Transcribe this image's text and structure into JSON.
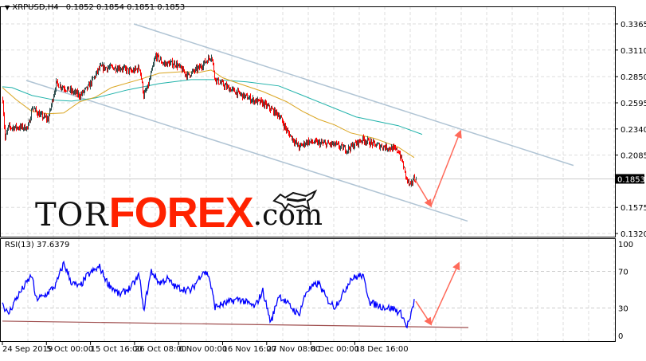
{
  "header": {
    "symbol": "XRPUSD,H4",
    "ohlc": "0.1852 0.1854 0.1851 0.1853"
  },
  "rsi": {
    "label": "RSI(13) 37.6379"
  },
  "logo": {
    "text_tor": "TOR",
    "text_forex": "FOREX",
    "text_com": ".com"
  },
  "colors": {
    "bull": "#2f4f4f",
    "bear": "#ff0000",
    "ma_fast": "#daa520",
    "ma_slow": "#20b2aa",
    "channel": "#b0c4d4",
    "arrow": "#ff6a5a",
    "rsi_line": "#0000ff",
    "rsi_trend": "#a05050",
    "current_price_bg": "#000000"
  },
  "chart_data": [
    {
      "type": "line",
      "title": "XRPUSD,H4",
      "price_axis": {
        "ticks": [
          "0.3365",
          "0.3110",
          "0.2850",
          "0.2595",
          "0.2340",
          "0.2085",
          "0.1575",
          "0.1320"
        ],
        "range": [
          0.132,
          0.3365
        ],
        "current": "0.1853"
      },
      "time_axis": {
        "ticks": [
          "24 Sep 2019",
          "5 Oct 00:00",
          "15 Oct 16:00",
          "26 Oct 08:00",
          "6 Nov 00:00",
          "16 Nov 16:00",
          "27 Nov 08:00",
          "8 Dec 00:00",
          "18 Dec 16:00"
        ]
      },
      "grid": true,
      "price_path": [
        [
          0,
          0.2628
        ],
        [
          3,
          0.224
        ],
        [
          7,
          0.2356
        ],
        [
          17,
          0.2356
        ],
        [
          32,
          0.2356
        ],
        [
          37,
          0.255
        ],
        [
          47,
          0.2473
        ],
        [
          57,
          0.2434
        ],
        [
          67,
          0.2783
        ],
        [
          87,
          0.2705
        ],
        [
          97,
          0.2667
        ],
        [
          107,
          0.2744
        ],
        [
          122,
          0.2938
        ],
        [
          137,
          0.2938
        ],
        [
          147,
          0.2938
        ],
        [
          162,
          0.2899
        ],
        [
          172,
          0.2938
        ],
        [
          177,
          0.2667
        ],
        [
          182,
          0.2744
        ],
        [
          192,
          0.3055
        ],
        [
          202,
          0.2977
        ],
        [
          217,
          0.2977
        ],
        [
          232,
          0.2861
        ],
        [
          247,
          0.2938
        ],
        [
          262,
          0.3055
        ],
        [
          267,
          0.2822
        ],
        [
          282,
          0.2744
        ],
        [
          297,
          0.2682
        ],
        [
          312,
          0.2628
        ],
        [
          327,
          0.2589
        ],
        [
          347,
          0.2473
        ],
        [
          357,
          0.2317
        ],
        [
          372,
          0.2162
        ],
        [
          382,
          0.2217
        ],
        [
          397,
          0.2201
        ],
        [
          417,
          0.2186
        ],
        [
          432,
          0.2139
        ],
        [
          452,
          0.224
        ],
        [
          467,
          0.2186
        ],
        [
          487,
          0.2154
        ],
        [
          497,
          0.2123
        ],
        [
          502,
          0.2007
        ],
        [
          507,
          0.1852
        ],
        [
          512,
          0.1774
        ],
        [
          515,
          0.1852
        ],
        [
          519,
          0.1853
        ]
      ],
      "ma_fast": [
        [
          0,
          0.2744
        ],
        [
          17,
          0.2628
        ],
        [
          37,
          0.2511
        ],
        [
          57,
          0.2488
        ],
        [
          77,
          0.2496
        ],
        [
          97,
          0.2605
        ],
        [
          117,
          0.2651
        ],
        [
          137,
          0.2744
        ],
        [
          172,
          0.2822
        ],
        [
          197,
          0.2884
        ],
        [
          227,
          0.2899
        ],
        [
          247,
          0.2892
        ],
        [
          262,
          0.2915
        ],
        [
          277,
          0.2838
        ],
        [
          297,
          0.2783
        ],
        [
          327,
          0.2705
        ],
        [
          357,
          0.2605
        ],
        [
          377,
          0.2511
        ],
        [
          397,
          0.2434
        ],
        [
          417,
          0.238
        ],
        [
          437,
          0.2302
        ],
        [
          467,
          0.2248
        ],
        [
          497,
          0.2162
        ],
        [
          517,
          0.2061
        ]
      ],
      "ma_slow": [
        [
          0,
          0.2752
        ],
        [
          12,
          0.2744
        ],
        [
          37,
          0.2667
        ],
        [
          67,
          0.262
        ],
        [
          87,
          0.2612
        ],
        [
          117,
          0.2643
        ],
        [
          157,
          0.2721
        ],
        [
          197,
          0.2783
        ],
        [
          237,
          0.2822
        ],
        [
          267,
          0.2822
        ],
        [
          307,
          0.2799
        ],
        [
          347,
          0.276
        ],
        [
          377,
          0.2667
        ],
        [
          444,
          0.2457
        ],
        [
          497,
          0.2372
        ],
        [
          527,
          0.2287
        ]
      ],
      "channel_upper": [
        [
          165,
          0.3365
        ],
        [
          717,
          0.1984
        ]
      ],
      "channel_lower": [
        [
          30,
          0.2814
        ],
        [
          584,
          0.1441
        ]
      ],
      "forecast_arrows": [
        [
          [
            517,
            0.186
          ],
          [
            538,
            0.1588
          ]
        ],
        [
          [
            538,
            0.1588
          ],
          [
            575,
            0.2317
          ]
        ]
      ]
    },
    {
      "type": "line",
      "title": "RSI(13) 37.6379",
      "y_axis": {
        "ticks": [
          "100",
          "70",
          "30",
          "0"
        ],
        "range": [
          0,
          100
        ]
      },
      "levels": [
        70,
        30
      ],
      "values": [
        [
          0,
          35.7
        ],
        [
          7,
          22.6
        ],
        [
          17,
          40
        ],
        [
          37,
          66
        ],
        [
          42,
          40
        ],
        [
          52,
          42.6
        ],
        [
          67,
          54.8
        ],
        [
          77,
          79
        ],
        [
          87,
          57.4
        ],
        [
          97,
          53
        ],
        [
          107,
          66
        ],
        [
          122,
          74.8
        ],
        [
          132,
          57.4
        ],
        [
          147,
          44.3
        ],
        [
          162,
          53
        ],
        [
          172,
          66
        ],
        [
          177,
          27
        ],
        [
          187,
          70.4
        ],
        [
          197,
          57.4
        ],
        [
          207,
          61.7
        ],
        [
          217,
          53
        ],
        [
          237,
          48.7
        ],
        [
          252,
          70.4
        ],
        [
          259,
          66
        ],
        [
          267,
          31.3
        ],
        [
          282,
          35.7
        ],
        [
          297,
          40
        ],
        [
          317,
          31.3
        ],
        [
          327,
          48.7
        ],
        [
          337,
          13.9
        ],
        [
          347,
          44.3
        ],
        [
          362,
          31.3
        ],
        [
          372,
          22.6
        ],
        [
          382,
          48.7
        ],
        [
          397,
          57.4
        ],
        [
          407,
          40
        ],
        [
          417,
          31.3
        ],
        [
          427,
          44.3
        ],
        [
          437,
          61.7
        ],
        [
          452,
          66
        ],
        [
          462,
          35.7
        ],
        [
          477,
          31.3
        ],
        [
          492,
          29
        ],
        [
          502,
          22.6
        ],
        [
          507,
          9.6
        ],
        [
          512,
          18
        ],
        [
          517,
          37.6
        ]
      ],
      "trendline": [
        [
          0,
          15.7
        ],
        [
          585,
          8.7
        ]
      ],
      "forecast_arrows": [
        [
          [
            519,
            37.4
          ],
          [
            538,
            12.2
          ]
        ],
        [
          [
            538,
            12.2
          ],
          [
            573,
            79
          ]
        ]
      ]
    }
  ]
}
